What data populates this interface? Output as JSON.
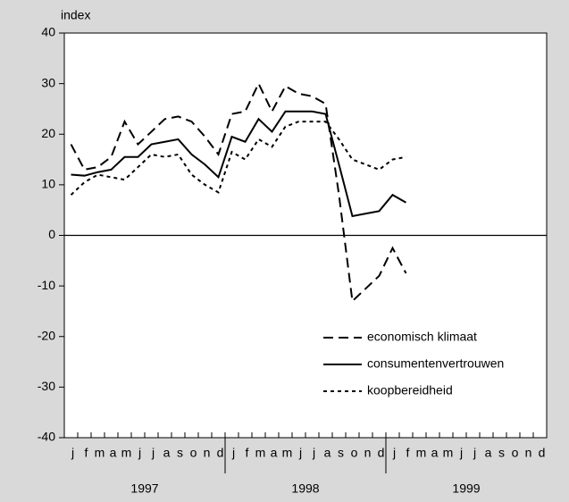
{
  "chart_data": {
    "type": "line",
    "y_label": "index",
    "categories": [
      "j",
      "f",
      "m",
      "a",
      "m",
      "j",
      "j",
      "a",
      "s",
      "o",
      "n",
      "d",
      "j",
      "f",
      "m",
      "a",
      "m",
      "j",
      "j",
      "a",
      "s",
      "o",
      "n",
      "d",
      "j",
      "f",
      "m",
      "a",
      "m",
      "j",
      "j",
      "a",
      "s",
      "o",
      "n",
      "d"
    ],
    "years": [
      "1997",
      "1998",
      "1999"
    ],
    "ylim": [
      -40,
      40
    ],
    "yticks": [
      -40,
      -30,
      -20,
      -10,
      0,
      10,
      20,
      30,
      40
    ],
    "legend": "lower right",
    "series": [
      {
        "name": "economisch klimaat",
        "color": "#000000",
        "dash": "11,6",
        "values": [
          18,
          13,
          13.5,
          15.5,
          22.5,
          18,
          20.5,
          23,
          23.5,
          22.5,
          19.5,
          16,
          24,
          24.5,
          30,
          24.5,
          29.5,
          28,
          27.5,
          26,
          8,
          -13,
          -10.5,
          -8,
          -2.5,
          -7.5,
          null,
          null,
          null,
          null,
          null,
          null,
          null,
          null,
          null,
          null
        ]
      },
      {
        "name": "consumentenvertrouwen",
        "color": "#000000",
        "dash": "none",
        "values": [
          12,
          11.8,
          12.5,
          13,
          15.5,
          15.5,
          18,
          18.5,
          19,
          16,
          14,
          11.5,
          19.5,
          18.5,
          23,
          20.5,
          24.5,
          24.5,
          24.5,
          24,
          14,
          3.8,
          4.3,
          4.8,
          8,
          6.5,
          null,
          null,
          null,
          null,
          null,
          null,
          null,
          null,
          null,
          null
        ]
      },
      {
        "name": "koopbereidheid",
        "color": "#000000",
        "dash": "4,4",
        "values": [
          8,
          10.5,
          12,
          11.5,
          11,
          13.5,
          16,
          15.5,
          16,
          12,
          10,
          8.5,
          16.5,
          15,
          19,
          17.5,
          21.5,
          22.5,
          22.5,
          22.5,
          19,
          15,
          14,
          13,
          15,
          15.5,
          null,
          null,
          null,
          null,
          null,
          null,
          null,
          null,
          null,
          null
        ]
      }
    ]
  }
}
